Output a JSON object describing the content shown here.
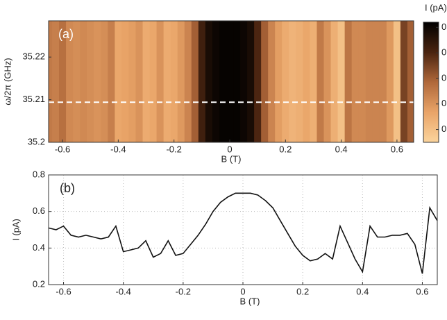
{
  "chart_data": [
    {
      "type": "heatmap",
      "panel_label": "(a)",
      "x_label": "B (T)",
      "y_label": "ω/2π (GHz)",
      "colorbar_label": "I (pA)",
      "xlim": [
        -0.65,
        0.66
      ],
      "ylim": [
        35.2,
        35.2285
      ],
      "xticks": [
        -0.6,
        -0.4,
        -0.2,
        0,
        0.2,
        0.4,
        0.6
      ],
      "yticks": [
        35.2,
        35.21,
        35.22
      ],
      "clim": [
        0.25,
        0.72
      ],
      "cticks": [
        {
          "value": 0.7,
          "label": "0."
        },
        {
          "value": 0.6,
          "label": "0."
        },
        {
          "value": 0.5,
          "label": "0."
        },
        {
          "value": 0.4,
          "label": "0."
        },
        {
          "value": 0.3,
          "label": "0."
        }
      ],
      "colormap": [
        "#fbd49c",
        "#e9a468",
        "#b0683a",
        "#4a2410",
        "#000000"
      ],
      "marker_y": 35.2094,
      "marker_color": "#ffffff",
      "x": [
        -0.65,
        -0.625,
        -0.6,
        -0.575,
        -0.55,
        -0.525,
        -0.5,
        -0.475,
        -0.45,
        -0.425,
        -0.4,
        -0.375,
        -0.35,
        -0.325,
        -0.3,
        -0.275,
        -0.25,
        -0.225,
        -0.2,
        -0.175,
        -0.15,
        -0.125,
        -0.1,
        -0.075,
        -0.05,
        -0.025,
        0,
        0.025,
        0.05,
        0.075,
        0.1,
        0.125,
        0.15,
        0.175,
        0.2,
        0.225,
        0.25,
        0.275,
        0.3,
        0.325,
        0.35,
        0.375,
        0.4,
        0.425,
        0.45,
        0.475,
        0.5,
        0.525,
        0.55,
        0.575,
        0.6,
        0.625,
        0.65
      ],
      "values": [
        0.45,
        0.44,
        0.47,
        0.42,
        0.41,
        0.42,
        0.41,
        0.4,
        0.41,
        0.44,
        0.36,
        0.37,
        0.38,
        0.4,
        0.35,
        0.36,
        0.4,
        0.35,
        0.36,
        0.39,
        0.43,
        0.5,
        0.62,
        0.68,
        0.7,
        0.71,
        0.71,
        0.71,
        0.7,
        0.68,
        0.6,
        0.5,
        0.43,
        0.38,
        0.35,
        0.33,
        0.34,
        0.36,
        0.34,
        0.45,
        0.4,
        0.34,
        0.3,
        0.46,
        0.42,
        0.42,
        0.43,
        0.43,
        0.43,
        0.39,
        0.3,
        0.55,
        0.5
      ]
    },
    {
      "type": "line",
      "panel_label": "(b)",
      "x_label": "B (T)",
      "y_label": "I (pA)",
      "xlim": [
        -0.65,
        0.65
      ],
      "ylim": [
        0.2,
        0.8
      ],
      "xticks": [
        -0.6,
        -0.4,
        -0.2,
        0,
        0.2,
        0.4,
        0.6
      ],
      "yticks": [
        0.2,
        0.4,
        0.6,
        0.8
      ],
      "grid": true,
      "x": [
        -0.65,
        -0.625,
        -0.6,
        -0.575,
        -0.55,
        -0.525,
        -0.5,
        -0.475,
        -0.45,
        -0.425,
        -0.4,
        -0.375,
        -0.35,
        -0.325,
        -0.3,
        -0.275,
        -0.25,
        -0.225,
        -0.2,
        -0.175,
        -0.15,
        -0.125,
        -0.1,
        -0.075,
        -0.05,
        -0.025,
        0,
        0.025,
        0.05,
        0.075,
        0.1,
        0.125,
        0.15,
        0.175,
        0.2,
        0.225,
        0.25,
        0.275,
        0.3,
        0.325,
        0.35,
        0.375,
        0.4,
        0.425,
        0.45,
        0.475,
        0.5,
        0.525,
        0.55,
        0.575,
        0.6,
        0.625,
        0.65
      ],
      "color": "#111111",
      "values": [
        0.51,
        0.5,
        0.52,
        0.47,
        0.46,
        0.47,
        0.46,
        0.45,
        0.46,
        0.52,
        0.38,
        0.39,
        0.4,
        0.44,
        0.35,
        0.37,
        0.44,
        0.36,
        0.37,
        0.42,
        0.47,
        0.53,
        0.6,
        0.65,
        0.68,
        0.7,
        0.7,
        0.7,
        0.69,
        0.66,
        0.62,
        0.55,
        0.48,
        0.41,
        0.36,
        0.33,
        0.34,
        0.37,
        0.34,
        0.52,
        0.43,
        0.34,
        0.27,
        0.52,
        0.46,
        0.46,
        0.47,
        0.47,
        0.48,
        0.42,
        0.26,
        0.62,
        0.55
      ]
    }
  ]
}
